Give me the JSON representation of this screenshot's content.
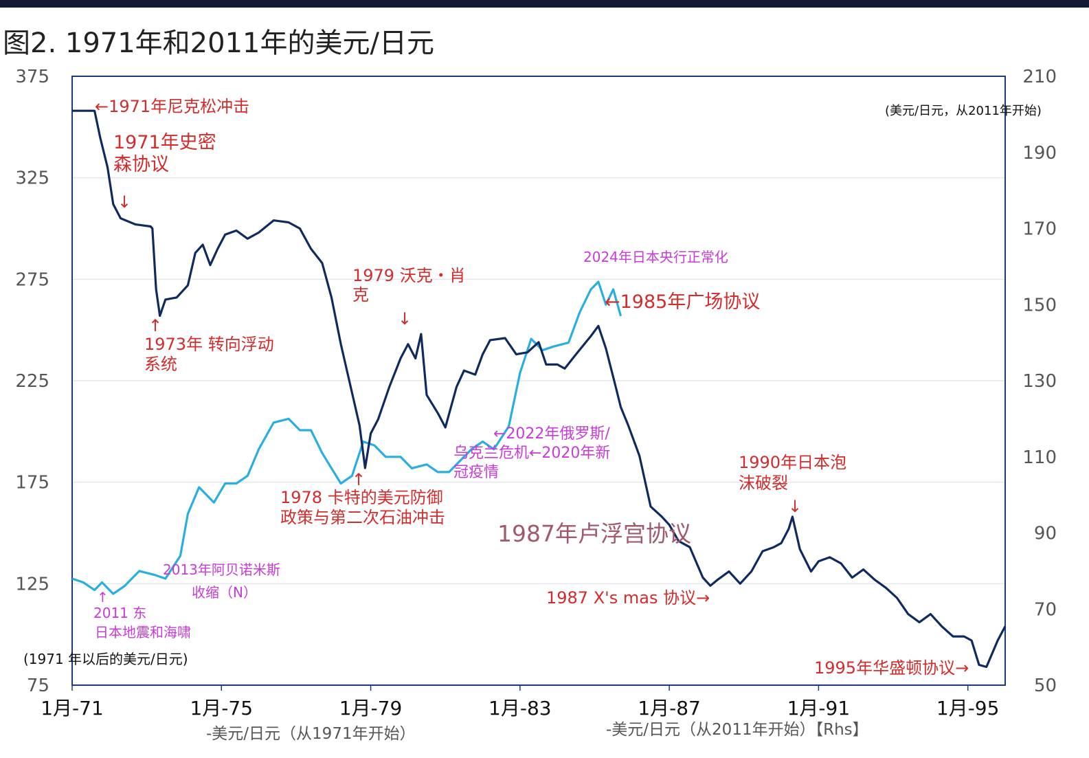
{
  "title": "图2. 1971年和2011年的美元/日元",
  "chart_data": {
    "type": "line",
    "title": "图2. 1971年和2011年的美元/日元",
    "x_tick_labels": [
      "1月-71",
      "1月-75",
      "1月-79",
      "1月-83",
      "1月-87",
      "1月-91",
      "1月-95"
    ],
    "x_range": [
      1971,
      1996
    ],
    "y_left": {
      "range": [
        75,
        375
      ],
      "ticks": [
        "375",
        "325",
        "275",
        "225",
        "175",
        "125",
        "75"
      ]
    },
    "y_right": {
      "range": [
        50,
        210
      ],
      "ticks": [
        "210",
        "190",
        "170",
        "150",
        "130",
        "110",
        "90",
        "70",
        "50"
      ]
    },
    "series": [
      {
        "name": "美元/日元（从1971年开始）",
        "axis": "left",
        "color": "#0f2a5e",
        "points": [
          [
            1971.0,
            358
          ],
          [
            1971.6,
            358
          ],
          [
            1971.75,
            345
          ],
          [
            1971.95,
            330
          ],
          [
            1972.1,
            312
          ],
          [
            1972.3,
            305
          ],
          [
            1972.7,
            302
          ],
          [
            1973.1,
            301
          ],
          [
            1973.15,
            300
          ],
          [
            1973.25,
            270
          ],
          [
            1973.35,
            257
          ],
          [
            1973.5,
            265
          ],
          [
            1973.8,
            266
          ],
          [
            1974.1,
            272
          ],
          [
            1974.3,
            288
          ],
          [
            1974.5,
            292
          ],
          [
            1974.7,
            282
          ],
          [
            1974.9,
            290
          ],
          [
            1975.1,
            297
          ],
          [
            1975.4,
            299
          ],
          [
            1975.7,
            295
          ],
          [
            1976.0,
            298
          ],
          [
            1976.4,
            304
          ],
          [
            1976.8,
            303
          ],
          [
            1977.1,
            300
          ],
          [
            1977.4,
            290
          ],
          [
            1977.7,
            283
          ],
          [
            1977.95,
            266
          ],
          [
            1978.2,
            243
          ],
          [
            1978.5,
            219
          ],
          [
            1978.7,
            203
          ],
          [
            1978.85,
            182
          ],
          [
            1979.0,
            199
          ],
          [
            1979.2,
            206
          ],
          [
            1979.5,
            222
          ],
          [
            1979.8,
            236
          ],
          [
            1980.0,
            243
          ],
          [
            1980.2,
            236
          ],
          [
            1980.35,
            248
          ],
          [
            1980.5,
            218
          ],
          [
            1980.8,
            209
          ],
          [
            1981.0,
            202
          ],
          [
            1981.3,
            222
          ],
          [
            1981.5,
            230
          ],
          [
            1981.8,
            228
          ],
          [
            1982.0,
            238
          ],
          [
            1982.2,
            245
          ],
          [
            1982.6,
            246
          ],
          [
            1982.9,
            238
          ],
          [
            1983.2,
            239
          ],
          [
            1983.5,
            244
          ],
          [
            1983.7,
            233
          ],
          [
            1984.0,
            233
          ],
          [
            1984.2,
            231
          ],
          [
            1984.5,
            238
          ],
          [
            1984.9,
            247
          ],
          [
            1985.1,
            252
          ],
          [
            1985.3,
            241
          ],
          [
            1985.55,
            223
          ],
          [
            1985.7,
            212
          ],
          [
            1985.9,
            203
          ],
          [
            1986.2,
            188
          ],
          [
            1986.5,
            163
          ],
          [
            1986.8,
            158
          ],
          [
            1987.0,
            154
          ],
          [
            1987.25,
            146
          ],
          [
            1987.55,
            143
          ],
          [
            1987.9,
            128
          ],
          [
            1988.1,
            124
          ],
          [
            1988.3,
            127
          ],
          [
            1988.6,
            131
          ],
          [
            1988.9,
            125
          ],
          [
            1989.2,
            131
          ],
          [
            1989.5,
            141
          ],
          [
            1989.8,
            143
          ],
          [
            1990.0,
            145
          ],
          [
            1990.2,
            152
          ],
          [
            1990.3,
            158
          ],
          [
            1990.5,
            142
          ],
          [
            1990.8,
            131
          ],
          [
            1991.0,
            136
          ],
          [
            1991.3,
            138
          ],
          [
            1991.6,
            135
          ],
          [
            1991.9,
            128
          ],
          [
            1992.2,
            132
          ],
          [
            1992.5,
            127
          ],
          [
            1992.8,
            123
          ],
          [
            1993.1,
            118
          ],
          [
            1993.4,
            110
          ],
          [
            1993.7,
            106
          ],
          [
            1994.0,
            110
          ],
          [
            1994.3,
            104
          ],
          [
            1994.6,
            99
          ],
          [
            1994.9,
            99
          ],
          [
            1995.1,
            97
          ],
          [
            1995.3,
            85
          ],
          [
            1995.5,
            84
          ],
          [
            1995.8,
            97
          ],
          [
            1996.0,
            104
          ]
        ]
      },
      {
        "name": "美元/日元（从2011年开始）【Rhs】",
        "axis": "right",
        "color": "#29aee0",
        "points": [
          [
            1971.0,
            78
          ],
          [
            1971.3,
            77
          ],
          [
            1971.6,
            75
          ],
          [
            1971.8,
            77
          ],
          [
            1972.1,
            74
          ],
          [
            1972.4,
            76
          ],
          [
            1972.8,
            80
          ],
          [
            1973.2,
            79
          ],
          [
            1973.5,
            78
          ],
          [
            1973.9,
            84
          ],
          [
            1974.1,
            95
          ],
          [
            1974.4,
            102
          ],
          [
            1974.8,
            98
          ],
          [
            1975.1,
            103
          ],
          [
            1975.4,
            103
          ],
          [
            1975.7,
            105
          ],
          [
            1976.0,
            112
          ],
          [
            1976.4,
            119
          ],
          [
            1976.8,
            120
          ],
          [
            1977.1,
            117
          ],
          [
            1977.4,
            117
          ],
          [
            1977.7,
            111
          ],
          [
            1977.95,
            107
          ],
          [
            1978.2,
            103
          ],
          [
            1978.5,
            105
          ],
          [
            1978.8,
            114
          ],
          [
            1979.1,
            113
          ],
          [
            1979.4,
            110
          ],
          [
            1979.8,
            110
          ],
          [
            1980.1,
            107
          ],
          [
            1980.5,
            108
          ],
          [
            1980.8,
            106
          ],
          [
            1981.1,
            106
          ],
          [
            1981.4,
            109
          ],
          [
            1981.7,
            112
          ],
          [
            1982.0,
            114
          ],
          [
            1982.3,
            112
          ],
          [
            1982.7,
            118
          ],
          [
            1983.0,
            132
          ],
          [
            1983.3,
            141
          ],
          [
            1983.6,
            138
          ],
          [
            1983.9,
            139
          ],
          [
            1984.3,
            140
          ],
          [
            1984.6,
            148
          ],
          [
            1984.9,
            154
          ],
          [
            1985.1,
            156
          ],
          [
            1985.3,
            150
          ],
          [
            1985.5,
            154
          ],
          [
            1985.7,
            147
          ]
        ]
      }
    ]
  },
  "labels": {
    "nixon": "←1971年尼克松冲击",
    "smithsonian_1": "1971年史密",
    "smithsonian_2": "森协议",
    "float_1": "1973年 转向浮动",
    "float_2": "系统",
    "volcker_1": "1979 沃克・肖",
    "volcker_2": "克",
    "carter_1": "1978 卡特的美元防御",
    "carter_2": "政策与第二次石油冲击",
    "boj_2024": "2024年日本央行正常化",
    "plaza": "←1985年广场协议",
    "russia_1": "←2022年俄罗斯/",
    "russia_2": "乌克兰危机←2020年新",
    "russia_3": "冠疫情",
    "bubble_1": "1990年日本泡",
    "bubble_2": "沫破裂",
    "louvre": "1987年卢浮宫协议",
    "xmas": "1987 X's mas 协议→",
    "washington": "1995年华盛顿协议→",
    "abe_1": "2013年阿贝诺米斯",
    "abe_2": "收缩（N）",
    "quake_1": "2011 东",
    "quake_2": "日本地震和海啸",
    "left_axis_note": "(1971 年以后的美元/日元)",
    "right_axis_note": "(美元/日元，从2011年开始)",
    "x_legend_1": "-美元/日元（从1971年开始）",
    "x_legend_2": "-美元/日元（从2011年开始）【Rhs】",
    "arrow_down": "↓",
    "arrow_up": "↑"
  }
}
